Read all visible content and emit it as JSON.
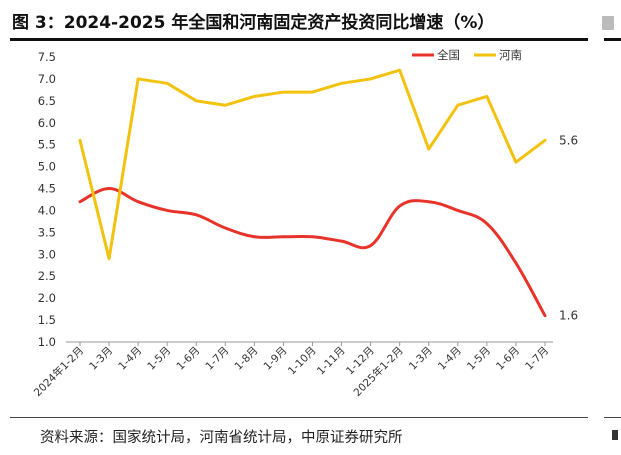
{
  "title": "图 3：2024-2025 年全国和河南固定资产投资同比增速（%）",
  "source": "资料来源：国家统计局，河南省统计局，中原证券研究所",
  "colors": {
    "national": "#e8332a",
    "henan": "#f2c20f"
  },
  "chart_data": {
    "type": "line",
    "title": "2024-2025 年全国和河南固定资产投资同比增速（%）",
    "xlabel": "",
    "ylabel": "",
    "ylim": [
      1.0,
      7.5
    ],
    "yticks": [
      "7.5",
      "7.0",
      "6.5",
      "6.0",
      "5.5",
      "5.0",
      "4.5",
      "4.0",
      "3.5",
      "3.0",
      "2.5",
      "2.0",
      "1.5",
      "1.0"
    ],
    "ytick_values": [
      7.5,
      7.0,
      6.5,
      6.0,
      5.5,
      5.0,
      4.5,
      4.0,
      3.5,
      3.0,
      2.5,
      2.0,
      1.5,
      1.0
    ],
    "categories": [
      "2024年1-2月",
      "1-3月",
      "1-4月",
      "1-5月",
      "1-6月",
      "1-7月",
      "1-8月",
      "1-9月",
      "1-10月",
      "1-11月",
      "1-12月",
      "2025年1-2月",
      "1-3月",
      "1-4月",
      "1-5月",
      "1-6月",
      "1-7月"
    ],
    "legend_position": "top-right",
    "series": [
      {
        "name": "全国",
        "color": "#e8332a",
        "values": [
          4.2,
          4.5,
          4.2,
          4.0,
          3.9,
          3.6,
          3.4,
          3.4,
          3.4,
          3.3,
          3.2,
          4.1,
          4.2,
          4.0,
          3.7,
          2.8,
          1.6
        ],
        "end_label": "1.6"
      },
      {
        "name": "河南",
        "color": "#f2c20f",
        "values": [
          5.6,
          2.9,
          7.0,
          6.9,
          6.5,
          6.4,
          6.6,
          6.7,
          6.7,
          6.9,
          7.0,
          7.2,
          5.4,
          6.4,
          6.6,
          5.1,
          5.6
        ],
        "end_label": "5.6"
      }
    ]
  }
}
